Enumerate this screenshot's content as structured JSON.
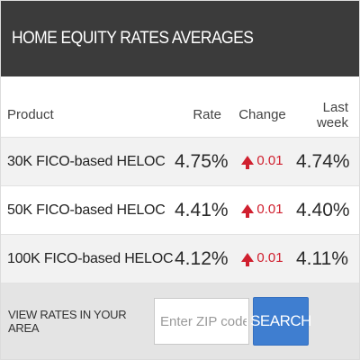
{
  "header": {
    "title": "HOME EQUITY RATES AVERAGES"
  },
  "table": {
    "columns": [
      "Product",
      "Rate",
      "Change",
      "Last week"
    ],
    "rows": [
      {
        "product": "30K FICO-based HELOC",
        "rate": "4.75%",
        "change": "0.01",
        "change_direction": "up",
        "last_week": "4.74%"
      },
      {
        "product": "50K FICO-based HELOC",
        "rate": "4.41%",
        "change": "0.01",
        "change_direction": "up",
        "last_week": "4.40%"
      },
      {
        "product": "100K FICO-based HELOC",
        "rate": "4.12%",
        "change": "0.01",
        "change_direction": "up",
        "last_week": "4.11%"
      }
    ]
  },
  "footer": {
    "label": "VIEW RATES IN YOUR AREA",
    "zip_placeholder": "Enter ZIP code",
    "zip_value": "",
    "search_label": "SEARCH"
  },
  "colors": {
    "header_bg": "#3b3b3b",
    "change_up": "#d0202f",
    "search_button": "#3f7ed0",
    "footer_bg": "#e4e4e4"
  },
  "icons": {
    "change_up": "arrow-up-icon"
  }
}
